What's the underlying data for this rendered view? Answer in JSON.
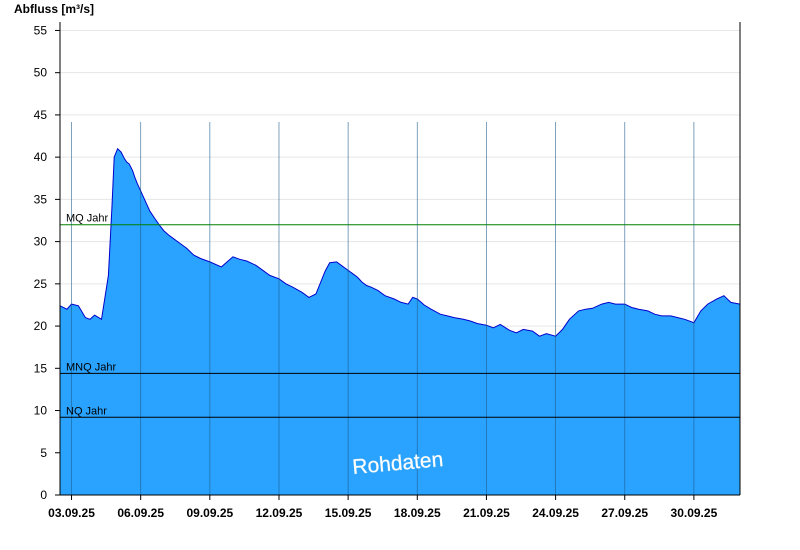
{
  "chart_data": {
    "type": "area",
    "ylabel": "Abfluss [m³/s]",
    "xlabel": "",
    "ylim": [
      0,
      56
    ],
    "yticks": [
      0,
      5,
      10,
      15,
      20,
      25,
      30,
      35,
      40,
      45,
      50,
      55
    ],
    "x_range_days": [
      2.5,
      32.0
    ],
    "x_ticks": [
      {
        "day": 3,
        "label": "03.09.25"
      },
      {
        "day": 6,
        "label": "06.09.25"
      },
      {
        "day": 9,
        "label": "09.09.25"
      },
      {
        "day": 12,
        "label": "12.09.25"
      },
      {
        "day": 15,
        "label": "15.09.25"
      },
      {
        "day": 18,
        "label": "18.09.25"
      },
      {
        "day": 21,
        "label": "21.09.25"
      },
      {
        "day": 24,
        "label": "24.09.25"
      },
      {
        "day": 27,
        "label": "27.09.25"
      },
      {
        "day": 30,
        "label": "30.09.25"
      }
    ],
    "grid": "horizontal",
    "fill_color": "#29a3ff",
    "line_color": "#0000cc",
    "reference_lines": [
      {
        "label": "MQ Jahr",
        "value": 32.0,
        "color": "#008000"
      },
      {
        "label": "MNQ Jahr",
        "value": 14.4,
        "color": "#000000"
      },
      {
        "label": "NQ Jahr",
        "value": 9.2,
        "color": "#000000"
      }
    ],
    "annotation": "Rohdaten",
    "series": [
      {
        "x": [
          2.5,
          2.8,
          3.0,
          3.3,
          3.6,
          3.8,
          4.0,
          4.3,
          4.6,
          4.75,
          4.85,
          5.0,
          5.15,
          5.3,
          5.4,
          5.5,
          5.65,
          5.75,
          5.85,
          6.0,
          6.2,
          6.4,
          6.6,
          6.8,
          7.0,
          7.2,
          7.4,
          7.6,
          7.8,
          8.0,
          8.3,
          8.6,
          9.0,
          9.5,
          10.0,
          10.3,
          10.6,
          11.0,
          11.3,
          11.6,
          12.0,
          12.3,
          12.6,
          13.0,
          13.3,
          13.6,
          14.0,
          14.2,
          14.5,
          14.7,
          14.9,
          15.2,
          15.4,
          15.6,
          15.8,
          16.0,
          16.3,
          16.6,
          17.0,
          17.3,
          17.6,
          17.8,
          18.0,
          18.3,
          18.6,
          19.0,
          19.3,
          19.6,
          20.0,
          20.3,
          20.6,
          21.0,
          21.3,
          21.6,
          22.0,
          22.3,
          22.6,
          23.0,
          23.3,
          23.6,
          24.0,
          24.3,
          24.6,
          25.0,
          25.3,
          25.6,
          26.0,
          26.3,
          26.6,
          27.0,
          27.3,
          27.6,
          28.0,
          28.3,
          28.6,
          29.0,
          29.3,
          29.6,
          30.0,
          30.3,
          30.6,
          31.0,
          31.3,
          31.6,
          32.0
        ],
        "y": [
          22.4,
          22.0,
          22.6,
          22.4,
          21.0,
          20.8,
          21.3,
          20.8,
          26.0,
          34.0,
          40.0,
          41.0,
          40.6,
          39.8,
          39.4,
          39.2,
          38.4,
          37.6,
          36.9,
          36.0,
          34.8,
          33.6,
          32.8,
          32.0,
          31.3,
          30.8,
          30.4,
          30.0,
          29.6,
          29.2,
          28.4,
          28.0,
          27.6,
          27.0,
          28.2,
          27.9,
          27.7,
          27.2,
          26.6,
          26.0,
          25.6,
          25.0,
          24.6,
          24.0,
          23.4,
          23.8,
          26.5,
          27.5,
          27.6,
          27.2,
          26.8,
          26.2,
          25.8,
          25.2,
          24.8,
          24.6,
          24.2,
          23.6,
          23.2,
          22.8,
          22.6,
          23.4,
          23.2,
          22.5,
          22.0,
          21.4,
          21.2,
          21.0,
          20.8,
          20.6,
          20.3,
          20.1,
          19.8,
          20.2,
          19.5,
          19.2,
          19.6,
          19.4,
          18.8,
          19.1,
          18.8,
          19.6,
          20.8,
          21.8,
          22.0,
          22.1,
          22.6,
          22.8,
          22.6,
          22.6,
          22.2,
          22.0,
          21.8,
          21.4,
          21.2,
          21.2,
          21.0,
          20.8,
          20.4,
          21.8,
          22.6,
          23.2,
          23.6,
          22.8,
          22.6
        ]
      }
    ]
  }
}
